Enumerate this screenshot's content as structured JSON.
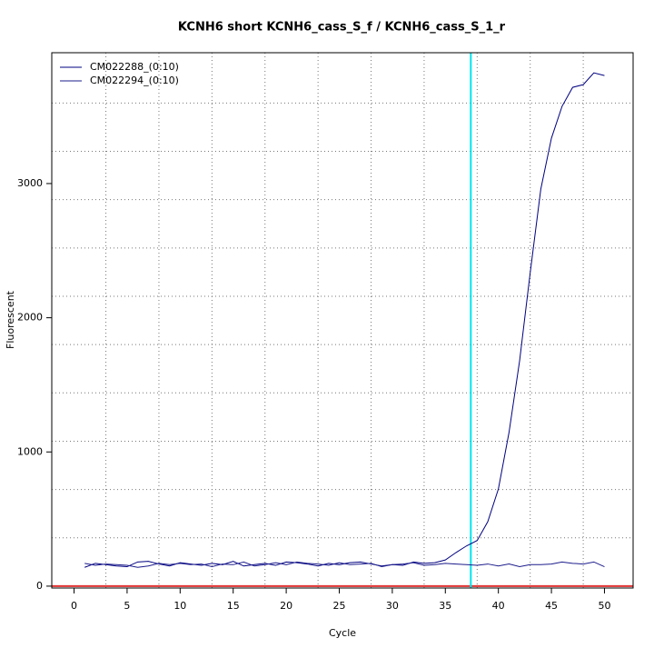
{
  "chart_data": {
    "type": "line",
    "title": "KCNH6 short KCNH6_cass_S_f / KCNH6_cass_S_1_r",
    "x_label": "Cycle",
    "y_label": "Fluorescent",
    "x": [
      1,
      2,
      3,
      4,
      5,
      6,
      7,
      8,
      9,
      10,
      11,
      12,
      13,
      14,
      15,
      16,
      17,
      18,
      19,
      20,
      21,
      22,
      23,
      24,
      25,
      26,
      27,
      28,
      29,
      30,
      31,
      32,
      33,
      34,
      35,
      36,
      37,
      38,
      39,
      40,
      41,
      42,
      43,
      44,
      45,
      46,
      47,
      48,
      49,
      50
    ],
    "series": [
      {
        "name": "CM022288_(0:10)",
        "color": "#000080",
        "values": [
          140,
          170,
          160,
          150,
          145,
          180,
          185,
          165,
          150,
          175,
          165,
          155,
          170,
          160,
          185,
          150,
          160,
          170,
          155,
          180,
          175,
          165,
          150,
          170,
          160,
          175,
          180,
          165,
          150,
          160,
          155,
          180,
          170,
          175,
          195,
          250,
          300,
          340,
          480,
          724,
          1144,
          1679,
          2336,
          2959,
          3338,
          3575,
          3717,
          3737,
          3825,
          3805
        ]
      },
      {
        "name": "CM022294_(0:10)",
        "color": "#1c1c8c",
        "values": [
          170,
          155,
          165,
          160,
          155,
          140,
          150,
          170,
          160,
          170,
          160,
          165,
          145,
          165,
          160,
          180,
          150,
          160,
          175,
          160,
          180,
          170,
          165,
          155,
          175,
          160,
          165,
          170,
          145,
          160,
          165,
          175,
          155,
          160,
          170,
          165,
          160,
          155,
          165,
          150,
          165,
          145,
          160,
          160,
          165,
          180,
          170,
          165,
          180,
          145
        ]
      }
    ],
    "xlim": [
      -2.1,
      52.7
    ],
    "ylim": [
      -14,
      3975
    ],
    "xticks": [
      0,
      5,
      10,
      15,
      20,
      25,
      30,
      35,
      40,
      45,
      50
    ],
    "yticks": [
      0,
      1000,
      2000,
      3000
    ],
    "grid_x": [
      3,
      8,
      13,
      18,
      23,
      28,
      33,
      38,
      43,
      48
    ],
    "grid_y": [
      360,
      720,
      1080,
      1440,
      1800,
      2160,
      2520,
      2880,
      3240,
      3600
    ],
    "threshold_x": 37.4,
    "threshold_x_color": "#00e5ee",
    "baseline_y": 0,
    "baseline_color": "#e03030",
    "legend": "top-left"
  }
}
